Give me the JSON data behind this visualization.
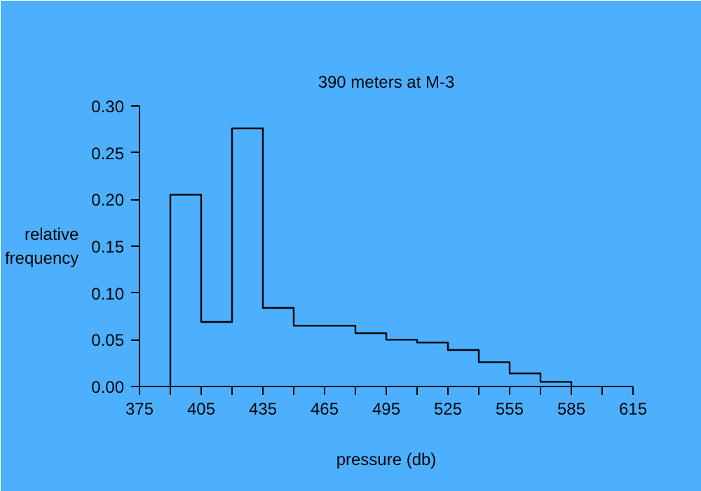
{
  "chart_data": {
    "type": "histogram",
    "title": "390 meters at M-3",
    "xlabel": "pressure (db)",
    "ylabel": "relative frequency",
    "bins": [
      390,
      405,
      420,
      435,
      450,
      465,
      480,
      495,
      510,
      525,
      540,
      555,
      570,
      585
    ],
    "values": [
      0.205,
      0.069,
      0.276,
      0.084,
      0.065,
      0.065,
      0.057,
      0.05,
      0.047,
      0.039,
      0.026,
      0.014,
      0.005
    ],
    "color": "#000000",
    "xlim": [
      375,
      615
    ],
    "ylim": [
      0,
      0.3
    ],
    "xticks": [
      375,
      {
        "value": 390,
        "label": null
      },
      405,
      {
        "value": 420,
        "label": null
      },
      435,
      {
        "value": 450,
        "label": null
      },
      465,
      {
        "value": 480,
        "label": null
      },
      495,
      {
        "value": 510,
        "label": null
      },
      525,
      {
        "value": 540,
        "label": null
      },
      555,
      {
        "value": 570,
        "label": null
      },
      585,
      {
        "value": 600,
        "label": null
      },
      615
    ],
    "yticks": [
      {
        "value": 0,
        "label": "0.00"
      },
      {
        "value": 0.05,
        "label": "0.05"
      },
      {
        "value": 0.1,
        "label": "0.10"
      },
      {
        "value": 0.15,
        "label": "0.15"
      },
      {
        "value": 0.2,
        "label": "0.20"
      },
      {
        "value": 0.25,
        "label": "0.25"
      },
      {
        "value": 0.3,
        "label": "0.30"
      }
    ],
    "grid": false
  }
}
